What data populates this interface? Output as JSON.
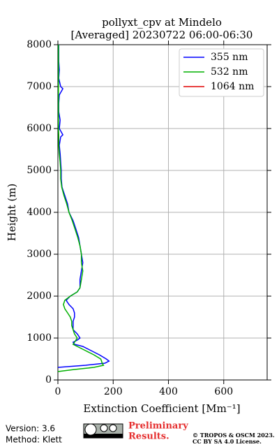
{
  "chart_data": {
    "type": "line",
    "title": [
      "pollyxt_cpv at Mindelo",
      "[Averaged] 20230722 06:00-06:30"
    ],
    "x_label": "Extinction Coefficient [Mm⁻¹]",
    "y_label": "Height (m)",
    "xlim": [
      0,
      757
    ],
    "xticks": [
      0,
      200,
      400,
      600
    ],
    "ylim": [
      0,
      8000
    ],
    "yticks": [
      0,
      1000,
      2000,
      3000,
      4000,
      5000,
      6000,
      7000,
      8000
    ],
    "grid": true,
    "legend": "upper right",
    "y": [
      200,
      250,
      300,
      350,
      400,
      450,
      500,
      600,
      700,
      800,
      850,
      900,
      950,
      1000,
      1100,
      1200,
      1300,
      1400,
      1500,
      1600,
      1700,
      1800,
      1900,
      2000,
      2100,
      2200,
      2400,
      2600,
      2800,
      3000,
      3200,
      3400,
      3600,
      3800,
      4000,
      4200,
      4400,
      4600,
      4800,
      5000,
      5200,
      5400,
      5600,
      5800,
      5850,
      6000,
      6200,
      6400,
      6600,
      6800,
      6950,
      7000,
      7200,
      7400,
      7600,
      7800,
      8000
    ],
    "series": [
      {
        "name": "355 nm",
        "color": "#0000ff",
        "values": [
          null,
          null,
          0,
          100,
          170,
          185,
          175,
          150,
          120,
          90,
          60,
          55,
          70,
          80,
          70,
          55,
          55,
          55,
          60,
          60,
          55,
          40,
          30,
          45,
          70,
          80,
          80,
          85,
          90,
          85,
          80,
          75,
          65,
          55,
          40,
          35,
          25,
          15,
          12,
          12,
          10,
          8,
          5,
          10,
          18,
          5,
          8,
          3,
          3,
          5,
          18,
          10,
          3,
          5,
          3,
          3,
          3
        ]
      },
      {
        "name": "532 nm",
        "color": "#00b000",
        "values": [
          0,
          60,
          130,
          165,
          160,
          158,
          155,
          130,
          100,
          70,
          55,
          60,
          65,
          70,
          60,
          55,
          50,
          50,
          45,
          35,
          25,
          20,
          25,
          45,
          70,
          80,
          85,
          90,
          85,
          85,
          80,
          72,
          62,
          52,
          40,
          32,
          22,
          14,
          10,
          10,
          8,
          5,
          3,
          3,
          3,
          2,
          2,
          2,
          2,
          2,
          2,
          2,
          2,
          2,
          2,
          2,
          2
        ]
      },
      {
        "name": "1064 nm",
        "color": "#e00000",
        "values": [
          null,
          null,
          null,
          null,
          null,
          null,
          null,
          null,
          null,
          null,
          null,
          null,
          null,
          null,
          null,
          null,
          null,
          null,
          null,
          null,
          null,
          null,
          null,
          null,
          null,
          null,
          null,
          null,
          null,
          null,
          null,
          null,
          null,
          null,
          null,
          null,
          null,
          null,
          null,
          null,
          null,
          null,
          null,
          null,
          null,
          null,
          null,
          null,
          null,
          null,
          null,
          null,
          null,
          null,
          null,
          null,
          null
        ]
      }
    ]
  },
  "footer": {
    "version": "Version: 3.6",
    "method": "Method: Klett",
    "preliminary": [
      "Preliminary",
      "Results."
    ],
    "copyright": [
      "© TROPOS & OSCM 2023.",
      "CC BY SA 4.0 License."
    ]
  }
}
